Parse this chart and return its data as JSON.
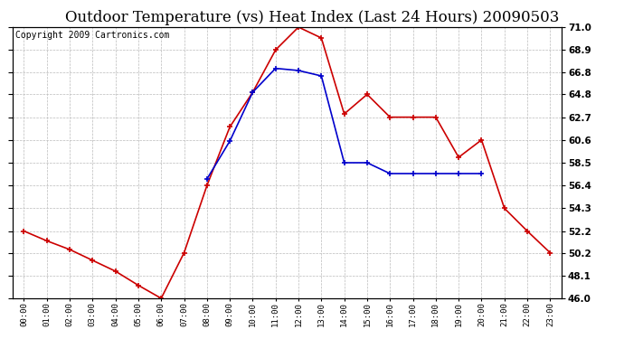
{
  "title": "Outdoor Temperature (vs) Heat Index (Last 24 Hours) 20090503",
  "copyright": "Copyright 2009 Cartronics.com",
  "hours": [
    "00:00",
    "01:00",
    "02:00",
    "03:00",
    "04:00",
    "05:00",
    "06:00",
    "07:00",
    "08:00",
    "09:00",
    "10:00",
    "11:00",
    "12:00",
    "13:00",
    "14:00",
    "15:00",
    "16:00",
    "17:00",
    "18:00",
    "19:00",
    "20:00",
    "21:00",
    "22:00",
    "23:00"
  ],
  "temp": [
    52.2,
    51.3,
    50.5,
    49.5,
    48.5,
    47.2,
    46.0,
    50.2,
    56.4,
    61.8,
    65.0,
    68.9,
    71.0,
    70.0,
    63.0,
    64.8,
    62.7,
    62.7,
    62.7,
    59.0,
    60.6,
    54.3,
    52.2,
    50.2
  ],
  "heat_index": [
    null,
    null,
    null,
    null,
    null,
    null,
    null,
    null,
    57.0,
    60.5,
    65.0,
    67.2,
    67.0,
    66.5,
    58.5,
    58.5,
    57.5,
    57.5,
    57.5,
    57.5,
    57.5,
    null,
    null,
    null
  ],
  "ylim": [
    46.0,
    71.0
  ],
  "yticks": [
    46.0,
    48.1,
    50.2,
    52.2,
    54.3,
    56.4,
    58.5,
    60.6,
    62.7,
    64.8,
    66.8,
    68.9,
    71.0
  ],
  "temp_color": "#cc0000",
  "heat_color": "#0000cc",
  "bg_color": "#ffffff",
  "plot_bg": "#ffffff",
  "grid_color": "#bbbbbb",
  "title_fontsize": 12,
  "copyright_fontsize": 7
}
